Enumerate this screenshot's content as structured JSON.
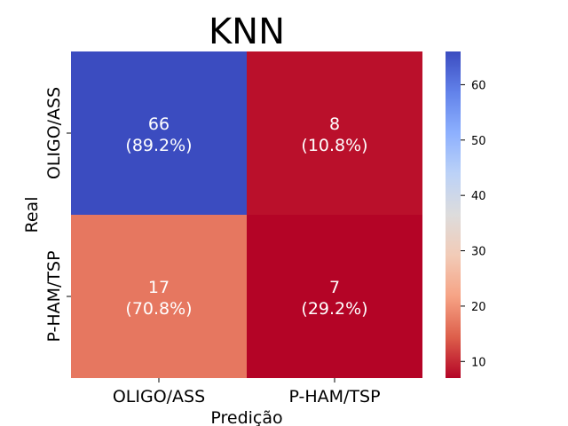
{
  "chart_data": {
    "type": "heatmap",
    "title": "KNN",
    "xlabel": "Predição",
    "ylabel": "Real",
    "x_categories": [
      "OLIGO/ASS",
      "P-HAM/TSP"
    ],
    "y_categories": [
      "OLIGO/ASS",
      "P-HAM/TSP"
    ],
    "values": [
      [
        66,
        8
      ],
      [
        17,
        7
      ]
    ],
    "cell_labels": [
      [
        {
          "count": "66",
          "pct": "(89.2%)"
        },
        {
          "count": "8",
          "pct": "(10.8%)"
        }
      ],
      [
        {
          "count": "17",
          "pct": "(70.8%)"
        },
        {
          "count": "7",
          "pct": "(29.2%)"
        }
      ]
    ],
    "colormap": "coolwarm_r",
    "color_range": [
      7,
      66
    ],
    "colorbar_ticks": [
      10,
      20,
      30,
      40,
      50,
      60
    ],
    "colors": {
      "high": "#3b4cc0",
      "mid": "#dddcdc",
      "low": "#b40426"
    }
  }
}
